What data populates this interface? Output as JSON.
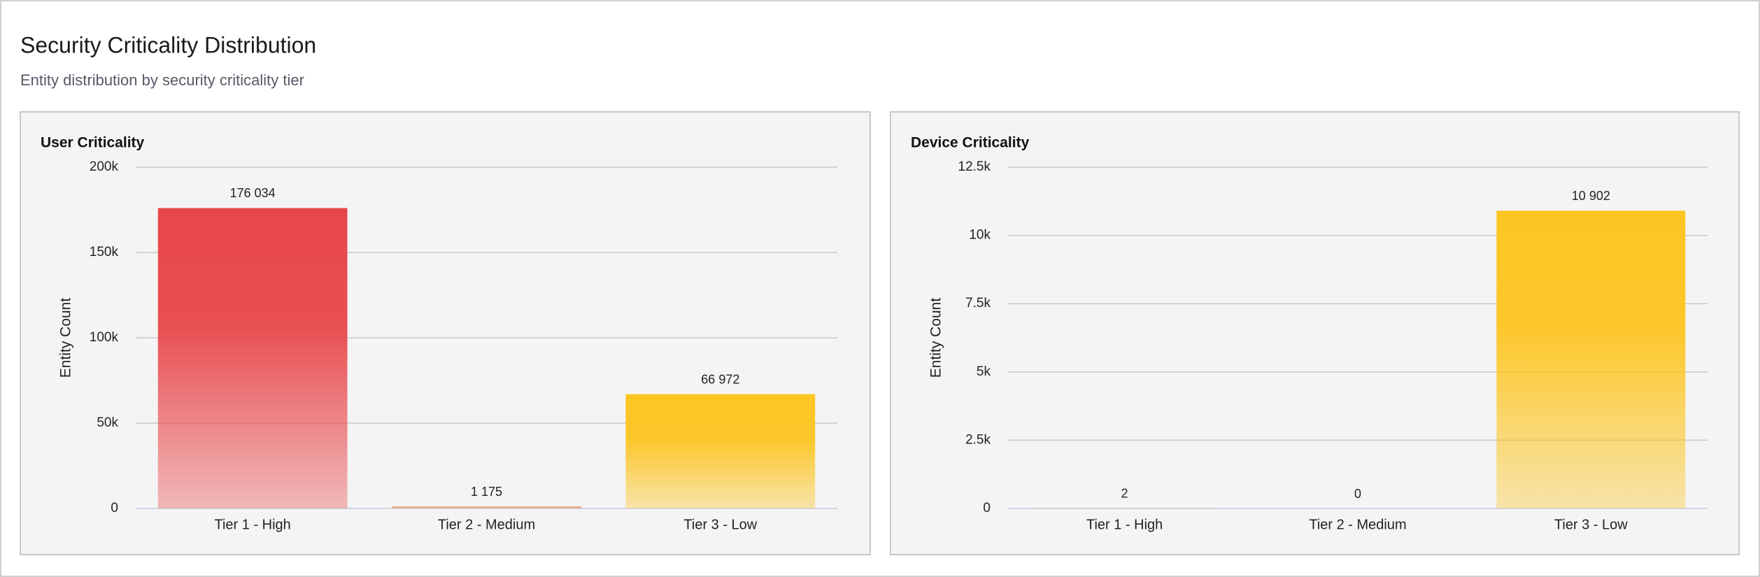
{
  "header": {
    "title": "Security Criticality Distribution",
    "subtitle": "Entity distribution by security criticality tier"
  },
  "chart_data": [
    {
      "type": "bar",
      "title": "User Criticality",
      "y_label": "Entity Count",
      "categories": [
        "Tier 1 - High",
        "Tier 2 - Medium",
        "Tier 3 - Low"
      ],
      "values": [
        176034,
        1175,
        66972
      ],
      "value_labels": [
        "176 034",
        "1 175",
        "66 972"
      ],
      "colors": [
        "#e8474a",
        "#ee9a6e",
        "#fdc521"
      ],
      "ylim": [
        0,
        200000
      ],
      "yticks": [
        0,
        {
          "value": 50000,
          "label": "50k"
        },
        {
          "value": 100000,
          "label": "100k"
        },
        {
          "value": 150000,
          "label": "150k"
        },
        {
          "value": 200000,
          "label": "200k"
        }
      ],
      "grid": true
    },
    {
      "type": "bar",
      "title": "Device Criticality",
      "y_label": "Entity Count",
      "categories": [
        "Tier 1 - High",
        "Tier 2 - Medium",
        "Tier 3 - Low"
      ],
      "values": [
        2,
        0,
        10902
      ],
      "value_labels": [
        "2",
        "0",
        "10 902"
      ],
      "colors": [
        "#e8474a",
        "#ee9a6e",
        "#fdc521"
      ],
      "ylim": [
        0,
        12500
      ],
      "yticks": [
        0,
        {
          "value": 2500,
          "label": "2.5k"
        },
        {
          "value": 5000,
          "label": "5k"
        },
        {
          "value": 7500,
          "label": "7.5k"
        },
        {
          "value": 10000,
          "label": "10k"
        },
        {
          "value": 12500,
          "label": "12.5k"
        }
      ],
      "grid": true
    }
  ]
}
